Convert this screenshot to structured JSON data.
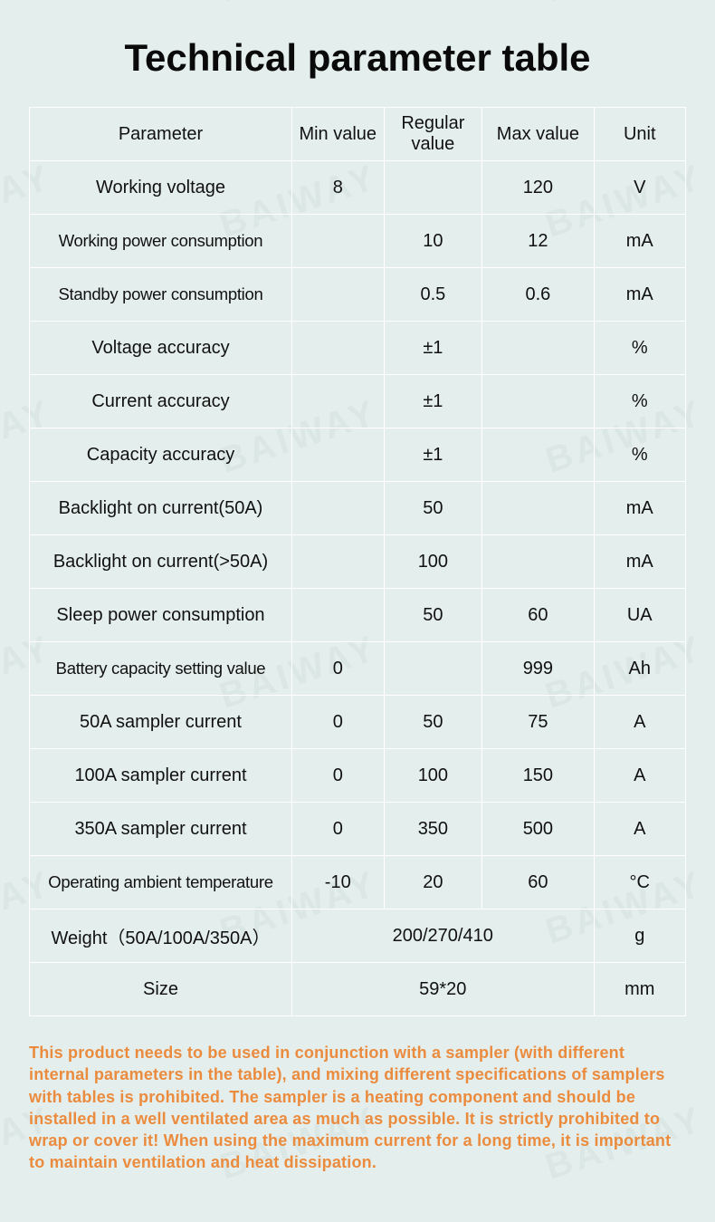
{
  "watermark_text": "BAIWAY",
  "title": "Technical parameter table",
  "table": {
    "headers": {
      "parameter": "Parameter",
      "min": "Min value",
      "regular": "Regular value",
      "max": "Max value",
      "unit": "Unit"
    },
    "rows": [
      {
        "name": "Working voltage",
        "min": "8",
        "reg": "",
        "max": "120",
        "unit": "V",
        "small": false
      },
      {
        "name": "Working power consumption",
        "min": "",
        "reg": "10",
        "max": "12",
        "unit": "mA",
        "small": true
      },
      {
        "name": "Standby power consumption",
        "min": "",
        "reg": "0.5",
        "max": "0.6",
        "unit": "mA",
        "small": true
      },
      {
        "name": "Voltage accuracy",
        "min": "",
        "reg": "±1",
        "max": "",
        "unit": "%",
        "small": false
      },
      {
        "name": "Current accuracy",
        "min": "",
        "reg": "±1",
        "max": "",
        "unit": "%",
        "small": false
      },
      {
        "name": "Capacity accuracy",
        "min": "",
        "reg": "±1",
        "max": "",
        "unit": "%",
        "small": false
      },
      {
        "name": "Backlight on current(50A)",
        "min": "",
        "reg": "50",
        "max": "",
        "unit": "mA",
        "small": false
      },
      {
        "name": "Backlight on current(>50A)",
        "min": "",
        "reg": "100",
        "max": "",
        "unit": "mA",
        "small": false
      },
      {
        "name": "Sleep power consumption",
        "min": "",
        "reg": "50",
        "max": "60",
        "unit": "UA",
        "small": false
      },
      {
        "name": "Battery capacity setting value",
        "min": "0",
        "reg": "",
        "max": "999",
        "unit": "Ah",
        "small": true
      },
      {
        "name": "50A sampler current",
        "min": "0",
        "reg": "50",
        "max": "75",
        "unit": "A",
        "small": false
      },
      {
        "name": "100A sampler current",
        "min": "0",
        "reg": "100",
        "max": "150",
        "unit": "A",
        "small": false
      },
      {
        "name": "350A sampler current",
        "min": "0",
        "reg": "350",
        "max": "500",
        "unit": "A",
        "small": false
      },
      {
        "name": "Operating ambient temperature",
        "min": "-10",
        "reg": "20",
        "max": "60",
        "unit": "°C",
        "small": true
      }
    ],
    "merged_rows": [
      {
        "name": "Weight（50A/100A/350A）",
        "value": "200/270/410",
        "unit": "g"
      },
      {
        "name": "Size",
        "value": "59*20",
        "unit": "mm"
      }
    ]
  },
  "note": "This product needs to be used in conjunction with a sampler (with different internal parameters in the table), and mixing different specifications of samplers with tables is prohibited. The sampler is a heating component and should be installed in a well ventilated area as much as possible. It is strictly prohibited to wrap or cover it! When using the maximum current for a long time, it is important to maintain ventilation and heat dissipation.",
  "colors": {
    "background": "#e4eeec",
    "border": "#ffffff",
    "text": "#111111",
    "note": "#eb8b3e"
  }
}
